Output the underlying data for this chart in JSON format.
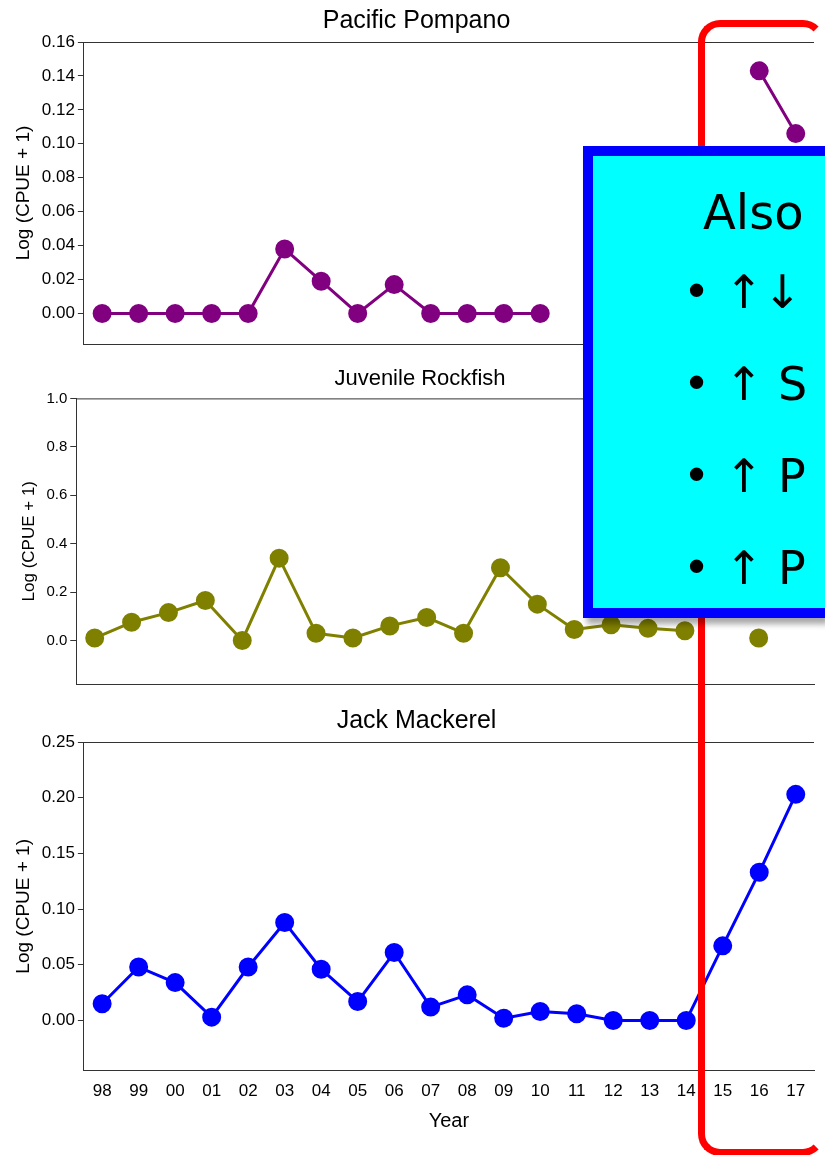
{
  "chart_data": [
    {
      "type": "line",
      "title": "Pacific Pompano",
      "ylabel": "Log (CPUE + 1)",
      "tick_labels": "y",
      "marker": "circle",
      "categories": [
        "98",
        "99",
        "00",
        "01",
        "02",
        "03",
        "04",
        "05",
        "06",
        "07",
        "08",
        "09",
        "10",
        "11",
        "12",
        "13",
        "14",
        "15",
        "16",
        "17"
      ],
      "series": [
        {
          "color": "#800080",
          "values": [
            0,
            0,
            0,
            0,
            0,
            0.038,
            0.019,
            0,
            0.017,
            0,
            0,
            0,
            0,
            null,
            null,
            null,
            null,
            null,
            0.143,
            0.106
          ]
        }
      ],
      "ylim": [
        -0.018,
        0.16
      ],
      "yticks": [
        {
          "value": 0,
          "label": "0.00"
        },
        {
          "value": 0.02,
          "label": "0.02"
        },
        {
          "value": 0.04,
          "label": "0.04"
        },
        {
          "value": 0.06,
          "label": "0.06"
        },
        {
          "value": 0.08,
          "label": "0.08"
        },
        {
          "value": 0.1,
          "label": "0.10"
        },
        {
          "value": 0.12,
          "label": "0.12"
        },
        {
          "value": 0.14,
          "label": "0.14"
        },
        {
          "value": 0.16,
          "label": "0.16"
        }
      ],
      "annotations": [
        "Also",
        "• ↑↓",
        "• ↑ S",
        "• ↑ P",
        "• ↑ P"
      ]
    },
    {
      "type": "line",
      "title": "Juvenile Rockfish",
      "ylabel": "Log (CPUE + 1)",
      "tick_labels": "y",
      "marker": "circle",
      "categories": [
        "98",
        "99",
        "00",
        "01",
        "02",
        "03",
        "04",
        "05",
        "06",
        "07",
        "08",
        "09",
        "10",
        "11",
        "12",
        "13",
        "14",
        "15",
        "16",
        "17"
      ],
      "series": [
        {
          "color": "#808000",
          "values": [
            0.01,
            0.075,
            0.115,
            0.165,
            0.0,
            0.34,
            0.03,
            0.01,
            0.06,
            0.095,
            0.03,
            0.3,
            0.15,
            0.045,
            0.065,
            0.05,
            0.04,
            null,
            0.01,
            null
          ]
        }
      ],
      "ylim": [
        -0.18,
        1.0
      ],
      "yticks": [
        {
          "value": 0,
          "label": "0.0"
        },
        {
          "value": 0.2,
          "label": "0.2"
        },
        {
          "value": 0.4,
          "label": "0.4"
        },
        {
          "value": 0.6,
          "label": "0.6"
        },
        {
          "value": 0.8,
          "label": "0.8"
        },
        {
          "value": 1,
          "label": "1.0"
        }
      ]
    },
    {
      "type": "line",
      "title": "Jack Mackerel",
      "ylabel": "Log (CPUE + 1)",
      "xlabel": "Year",
      "marker": "circle",
      "categories": [
        "98",
        "99",
        "00",
        "01",
        "02",
        "03",
        "04",
        "05",
        "06",
        "07",
        "08",
        "09",
        "10",
        "11",
        "12",
        "13",
        "14",
        "15",
        "16",
        "17"
      ],
      "series": [
        {
          "color": "#0000ff",
          "values": [
            0.015,
            0.048,
            0.034,
            0.003,
            0.048,
            0.088,
            0.046,
            0.017,
            0.061,
            0.012,
            0.023,
            0.002,
            0.008,
            0.006,
            0,
            0,
            0,
            0.067,
            0.133,
            0.203
          ]
        }
      ],
      "ylim": [
        -0.045,
        0.25
      ],
      "yticks": [
        {
          "value": 0,
          "label": "0.00"
        },
        {
          "value": 0.05,
          "label": "0.05"
        },
        {
          "value": 0.1,
          "label": "0.10"
        },
        {
          "value": 0.15,
          "label": "0.15"
        },
        {
          "value": 0.2,
          "label": "0.20"
        },
        {
          "value": 0.25,
          "label": "0.25"
        }
      ]
    }
  ]
}
